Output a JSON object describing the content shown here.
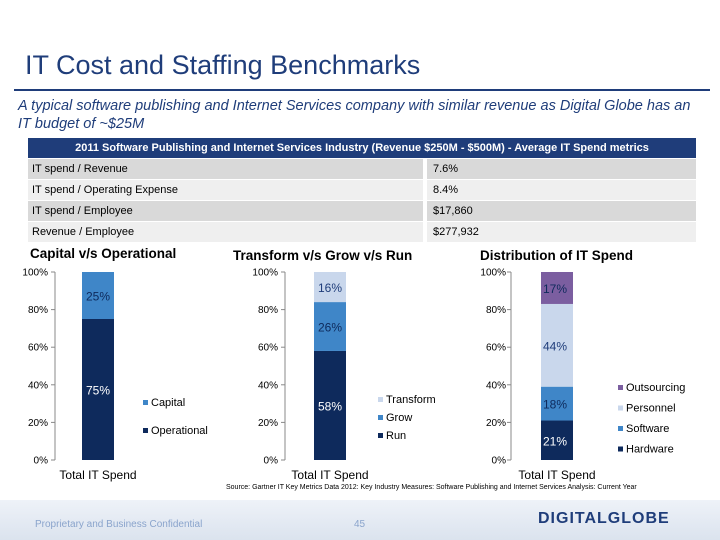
{
  "title": "IT Cost and Staffing Benchmarks",
  "subtitle": "A typical software publishing and Internet Services company with similar revenue as Digital Globe has an IT budget of ~$25M",
  "table": {
    "header": "2011 Software Publishing and Internet Services Industry (Revenue $250M - $500M) - Average IT Spend metrics",
    "rows": [
      {
        "label": "IT spend / Revenue",
        "value": "7.6%"
      },
      {
        "label": "IT spend / Operating Expense",
        "value": "8.4%"
      },
      {
        "label": "IT spend / Employee",
        "value": "$17,860"
      },
      {
        "label": "Revenue / Employee",
        "value": "$277,932"
      }
    ]
  },
  "source": "Source: Gartner IT Key Metrics Data 2012: Key Industry Measures: Software Publishing and Internet Services Analysis: Current Year",
  "footer": {
    "left": "Proprietary and Business Confidential",
    "page": "45",
    "logo": "DIGITALGLOBE"
  },
  "colors": {
    "navy": "#0e2a5c",
    "blue": "#3f86c8",
    "light": "#c9d7ec",
    "purple": "#7b5ea0",
    "title": "#1f3d7a"
  },
  "chart_data": [
    {
      "type": "bar",
      "stacked": true,
      "title": "Capital v/s Operational",
      "categories": [
        "Total IT Spend"
      ],
      "yticks": [
        "0%",
        "20%",
        "40%",
        "60%",
        "80%",
        "100%"
      ],
      "ylim": [
        0,
        100
      ],
      "series": [
        {
          "name": "Operational",
          "values": [
            75
          ],
          "label": "75%",
          "color": "#0e2a5c"
        },
        {
          "name": "Capital",
          "values": [
            25
          ],
          "label": "25%",
          "color": "#3f86c8"
        }
      ],
      "legend": [
        "Capital",
        "Operational"
      ]
    },
    {
      "type": "bar",
      "stacked": true,
      "title": "Transform v/s Grow v/s Run",
      "categories": [
        "Total IT Spend"
      ],
      "yticks": [
        "0%",
        "20%",
        "40%",
        "60%",
        "80%",
        "100%"
      ],
      "ylim": [
        0,
        100
      ],
      "series": [
        {
          "name": "Run",
          "values": [
            58
          ],
          "label": "58%",
          "color": "#0e2a5c"
        },
        {
          "name": "Grow",
          "values": [
            26
          ],
          "label": "26%",
          "color": "#3f86c8"
        },
        {
          "name": "Transform",
          "values": [
            16
          ],
          "label": "16%",
          "color": "#c9d7ec"
        }
      ],
      "legend": [
        "Transform",
        "Grow",
        "Run"
      ]
    },
    {
      "type": "bar",
      "stacked": true,
      "title": "Distribution of IT Spend",
      "categories": [
        "Total IT Spend"
      ],
      "yticks": [
        "0%",
        "20%",
        "40%",
        "60%",
        "80%",
        "100%"
      ],
      "ylim": [
        0,
        100
      ],
      "series": [
        {
          "name": "Hardware",
          "values": [
            21
          ],
          "label": "21%",
          "color": "#0e2a5c"
        },
        {
          "name": "Software",
          "values": [
            18
          ],
          "label": "18%",
          "color": "#3f86c8"
        },
        {
          "name": "Personnel",
          "values": [
            44
          ],
          "label": "44%",
          "color": "#c9d7ec"
        },
        {
          "name": "Outsourcing",
          "values": [
            17
          ],
          "label": "17%",
          "color": "#7b5ea0"
        }
      ],
      "legend": [
        "Outsourcing",
        "Personnel",
        "Software",
        "Hardware"
      ]
    }
  ]
}
